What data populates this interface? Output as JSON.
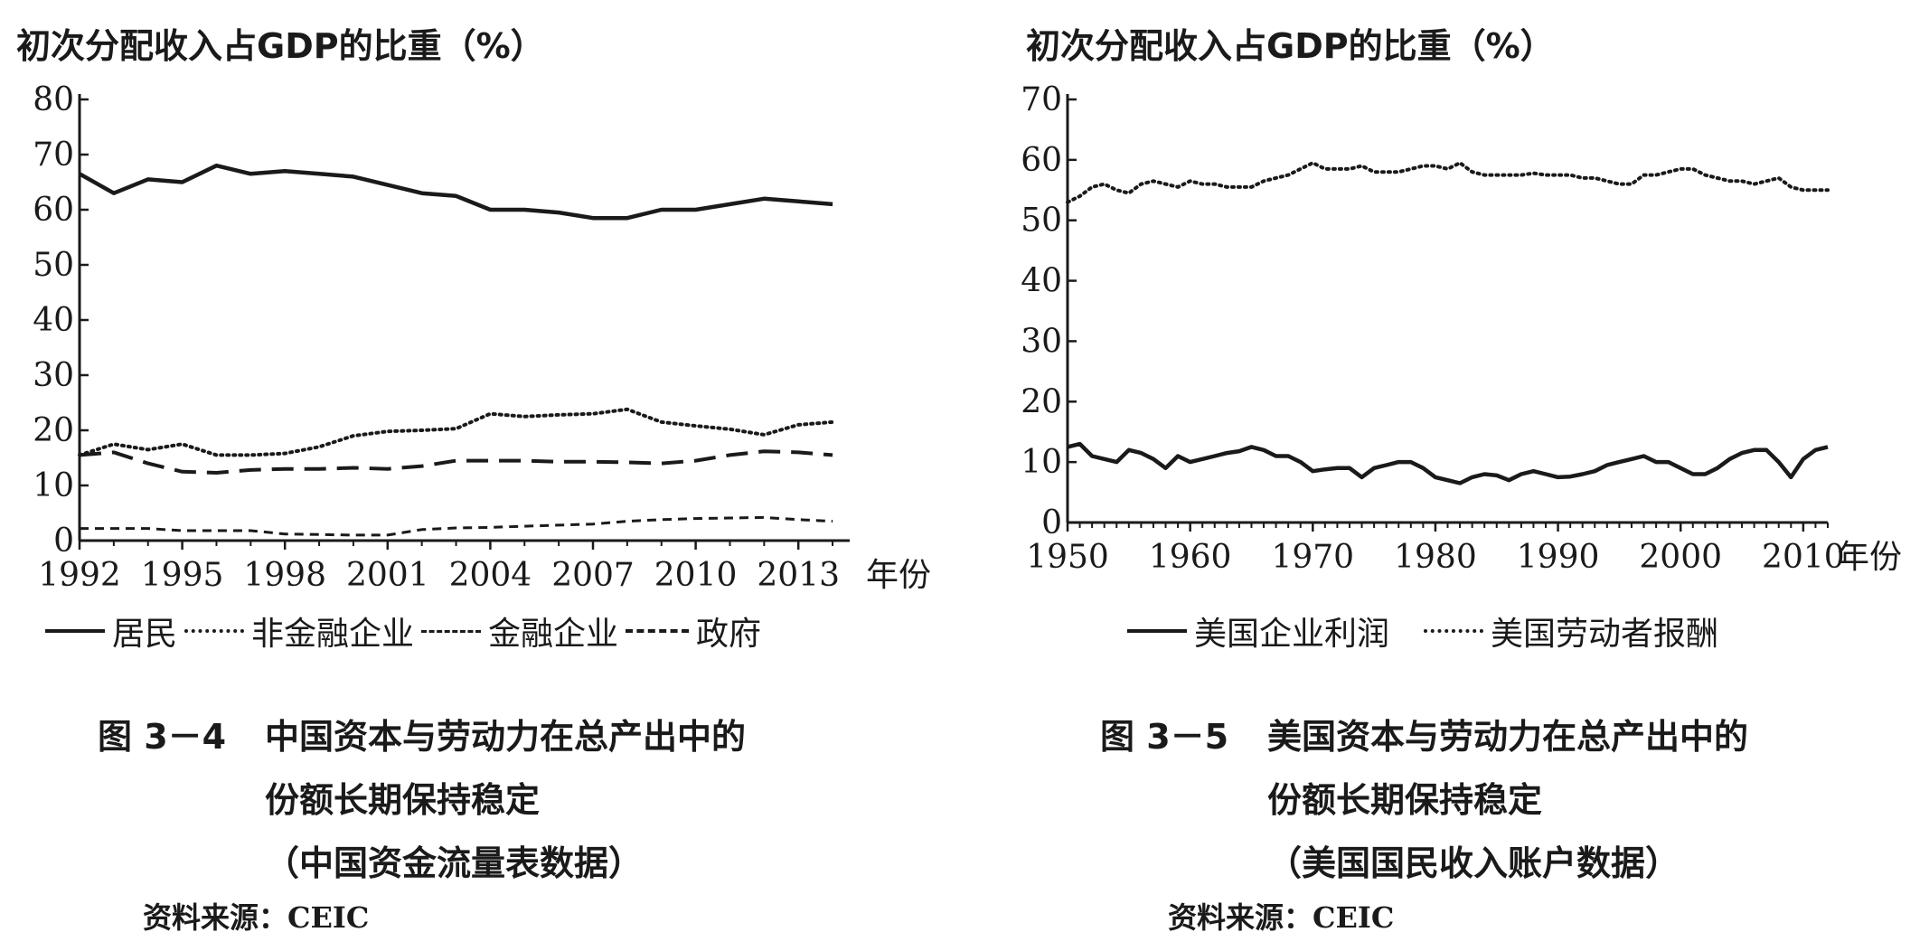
{
  "chart_data": [
    {
      "type": "line",
      "ylabel": "初次分配收入占GDP的比重（%）",
      "xlabel": "年份",
      "ylim": [
        0,
        80
      ],
      "yticks": [
        0,
        10,
        20,
        30,
        40,
        50,
        60,
        70,
        80
      ],
      "xlim": [
        1992,
        2014.5
      ],
      "xticks": [
        1992,
        1995,
        1998,
        2001,
        2004,
        2007,
        2010,
        2013
      ],
      "grid": false,
      "legend_placement": "bottom",
      "x": [
        1992,
        1993,
        1994,
        1995,
        1996,
        1997,
        1998,
        1999,
        2000,
        2001,
        2002,
        2003,
        2004,
        2005,
        2006,
        2007,
        2008,
        2009,
        2010,
        2011,
        2012,
        2013,
        2014
      ],
      "series": [
        {
          "name": "居民",
          "style": "solid",
          "values": [
            66.5,
            63,
            65.5,
            65,
            68,
            66.5,
            67,
            66.5,
            66,
            64.5,
            63,
            62.5,
            60,
            60,
            59.5,
            58.5,
            58.5,
            60,
            60,
            61,
            62,
            61.5,
            61
          ]
        },
        {
          "name": "非金融企业",
          "style": "dotted",
          "values": [
            15.5,
            17.5,
            16.5,
            17.5,
            15.5,
            15.5,
            15.8,
            17,
            19,
            19.8,
            20,
            20.3,
            23,
            22.5,
            22.8,
            23,
            23.8,
            21.5,
            20.8,
            20.2,
            19.2,
            21,
            21.5
          ]
        },
        {
          "name": "金融企业",
          "style": "dashed",
          "values": [
            2.2,
            2.2,
            2.2,
            1.8,
            1.8,
            1.8,
            1.2,
            1.1,
            1,
            1,
            2,
            2.3,
            2.4,
            2.6,
            2.8,
            3,
            3.5,
            3.8,
            4,
            4.1,
            4.2,
            3.8,
            3.5
          ]
        },
        {
          "name": "政府",
          "style": "longdash",
          "values": [
            15.5,
            16,
            14,
            12.5,
            12.3,
            12.8,
            13,
            13,
            13.2,
            13,
            13.5,
            14.5,
            14.5,
            14.5,
            14.3,
            14.3,
            14.2,
            14,
            14.5,
            15.5,
            16.2,
            16,
            15.5
          ]
        }
      ],
      "caption_number": "图 3－4",
      "caption_lines": [
        "中国资本与劳动力在总产出中的",
        "份额长期保持稳定",
        "（中国资金流量表数据）"
      ],
      "source": "资料来源：CEIC"
    },
    {
      "type": "line",
      "ylabel": "初次分配收入占GDP的比重（%）",
      "xlabel": "年份",
      "ylim": [
        0,
        70
      ],
      "yticks": [
        0,
        10,
        20,
        30,
        40,
        50,
        60,
        70
      ],
      "xlim": [
        1950,
        2012
      ],
      "xticks": [
        1950,
        1960,
        1970,
        1980,
        1990,
        2000,
        2010
      ],
      "grid": false,
      "legend_placement": "bottom",
      "x": [
        1950,
        1951,
        1952,
        1953,
        1954,
        1955,
        1956,
        1957,
        1958,
        1959,
        1960,
        1961,
        1962,
        1963,
        1964,
        1965,
        1966,
        1967,
        1968,
        1969,
        1970,
        1971,
        1972,
        1973,
        1974,
        1975,
        1976,
        1977,
        1978,
        1979,
        1980,
        1981,
        1982,
        1983,
        1984,
        1985,
        1986,
        1987,
        1988,
        1989,
        1990,
        1991,
        1992,
        1993,
        1994,
        1995,
        1996,
        1997,
        1998,
        1999,
        2000,
        2001,
        2002,
        2003,
        2004,
        2005,
        2006,
        2007,
        2008,
        2009,
        2010,
        2011,
        2012
      ],
      "series": [
        {
          "name": "美国企业利润",
          "style": "solid",
          "values": [
            12.5,
            13,
            11,
            10.5,
            10,
            12,
            11.5,
            10.5,
            9,
            11,
            10,
            10.5,
            11,
            11.5,
            11.8,
            12.5,
            12,
            11,
            11,
            10,
            8.5,
            8.8,
            9,
            9,
            7.5,
            9,
            9.5,
            10,
            10,
            9,
            7.5,
            7,
            6.5,
            7.5,
            8,
            7.8,
            7,
            8,
            8.5,
            8,
            7.5,
            7.6,
            8,
            8.5,
            9.5,
            10,
            10.5,
            11,
            10,
            10,
            9,
            8,
            8,
            9,
            10.5,
            11.5,
            12,
            12,
            10,
            7.5,
            10.5,
            12,
            12.5
          ]
        },
        {
          "name": "美国劳动者报酬",
          "style": "dotted",
          "values": [
            53,
            54,
            55.5,
            56,
            55,
            54.5,
            56,
            56.5,
            56,
            55.5,
            56.5,
            56,
            56,
            55.5,
            55.5,
            55.5,
            56.5,
            57,
            57.5,
            58.5,
            59.5,
            58.5,
            58.5,
            58.5,
            59,
            58,
            58,
            58,
            58.5,
            59,
            59,
            58.5,
            59.5,
            58,
            57.5,
            57.5,
            57.5,
            57.5,
            57.8,
            57.5,
            57.5,
            57.5,
            57,
            57,
            56.5,
            56,
            56,
            57.5,
            57.5,
            58,
            58.5,
            58.5,
            57.5,
            57,
            56.5,
            56.5,
            56,
            56.5,
            57,
            55.5,
            55,
            55,
            55
          ]
        }
      ],
      "caption_number": "图 3－5",
      "caption_lines": [
        "美国资本与劳动力在总产出中的",
        "份额长期保持稳定",
        "（美国国民收入账户数据）"
      ],
      "source": "资料来源：CEIC"
    }
  ]
}
